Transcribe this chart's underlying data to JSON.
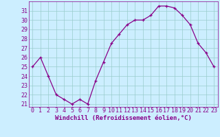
{
  "x": [
    0,
    1,
    2,
    3,
    4,
    5,
    6,
    7,
    8,
    9,
    10,
    11,
    12,
    13,
    14,
    15,
    16,
    17,
    18,
    19,
    20,
    21,
    22,
    23
  ],
  "y": [
    25,
    26,
    24,
    22,
    21.5,
    21,
    21.5,
    21,
    23.5,
    25.5,
    27.5,
    28.5,
    29.5,
    30,
    30,
    30.5,
    31.5,
    31.5,
    31.3,
    30.5,
    29.5,
    27.5,
    26.5,
    25
  ],
  "line_color": "#880088",
  "marker": "+",
  "bg_color": "#cceeff",
  "grid_color": "#99cccc",
  "plot_bg": "#cceeff",
  "xlabel": "Windchill (Refroidissement éolien,°C)",
  "xlim": [
    -0.5,
    23.5
  ],
  "ylim": [
    20.7,
    32.0
  ],
  "yticks": [
    21,
    22,
    23,
    24,
    25,
    26,
    27,
    28,
    29,
    30,
    31
  ],
  "xticks": [
    0,
    1,
    2,
    3,
    4,
    5,
    6,
    7,
    8,
    9,
    10,
    11,
    12,
    13,
    14,
    15,
    16,
    17,
    18,
    19,
    20,
    21,
    22,
    23
  ],
  "tick_label_color": "#880088",
  "xlabel_fontsize": 6.5,
  "tick_fontsize": 6.0,
  "linewidth": 0.9,
  "markersize": 3.5,
  "markeredgewidth": 0.9
}
